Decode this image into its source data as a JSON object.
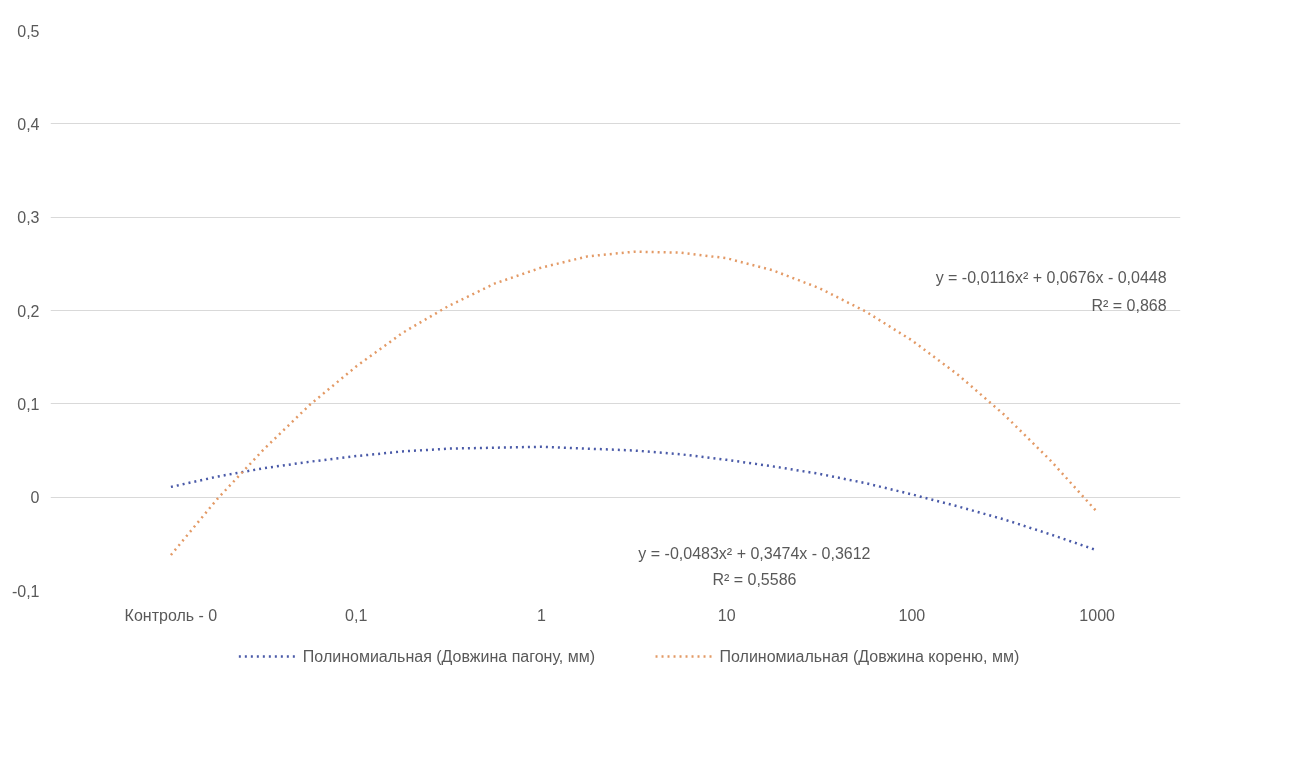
{
  "chart_data": {
    "type": "line",
    "categories": [
      "Контроль - 0",
      null,
      null,
      null,
      "0,1",
      null,
      null,
      null,
      "1",
      null,
      null,
      null,
      "10",
      null,
      null,
      null,
      "100",
      null,
      null,
      null,
      "1000"
    ],
    "ylim": [
      -0.1,
      0.5
    ],
    "yticks": [
      {
        "value": -0.1,
        "label": "-0,1"
      },
      {
        "value": 0,
        "label": "0"
      },
      {
        "value": 0.1,
        "label": "0,1"
      },
      {
        "value": 0.2,
        "label": "0,2"
      },
      {
        "value": 0.3,
        "label": "0,3"
      },
      {
        "value": 0.4,
        "label": "0,4"
      },
      {
        "value": 0.5,
        "label": "0,5"
      }
    ],
    "grid": "y",
    "legend": "bottom",
    "line_style": "dotted",
    "marker": "none",
    "series": [
      {
        "name": "Полиномиальная (Довжина пагону, мм)",
        "color": "#4a5aa8",
        "values": [
          0.011,
          0.022,
          0.031,
          0.038,
          0.044,
          0.049,
          0.052,
          0.053,
          0.054,
          0.052,
          0.05,
          0.046,
          0.04,
          0.033,
          0.025,
          0.015,
          0.003,
          -0.01,
          -0.024,
          -0.04,
          -0.057
        ]
      },
      {
        "name": "Полиномиальная (Довжина кореню, мм)",
        "color": "#e39a66",
        "values": [
          -0.062,
          -0.002,
          0.051,
          0.099,
          0.14,
          0.176,
          0.205,
          0.229,
          0.246,
          0.258,
          0.263,
          0.262,
          0.256,
          0.243,
          0.224,
          0.199,
          0.168,
          0.131,
          0.088,
          0.039,
          -0.016
        ]
      }
    ],
    "annotations": [
      "y = -0,0116x² + 0,0676x - 0,0448",
      "R² = 0,868",
      "y = -0,0483x² + 0,3474x - 0,3612",
      "R² = 0,5586"
    ]
  }
}
